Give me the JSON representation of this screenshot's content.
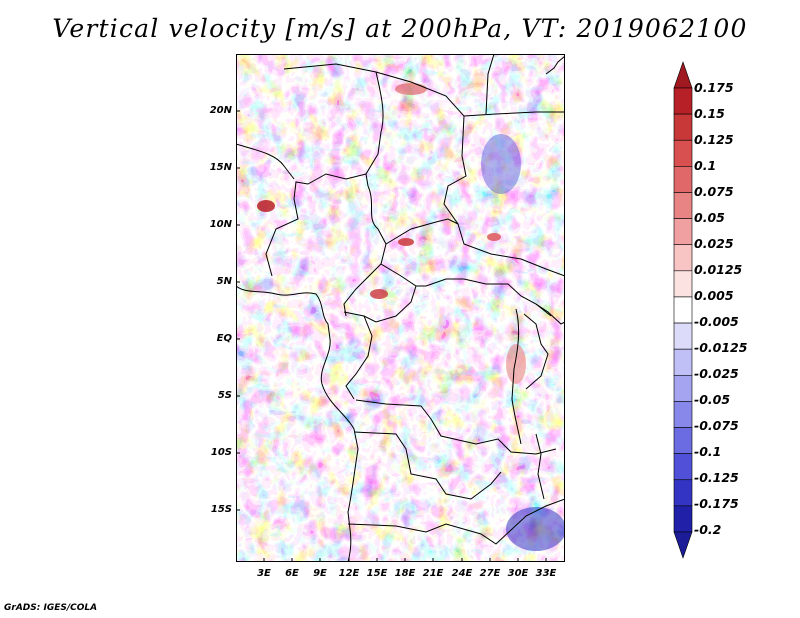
{
  "title": "Vertical velocity [m/s] at 200hPa, VT: 2019062100",
  "credit": "GrADS: IGES/COLA",
  "map": {
    "lon_range": [
      0,
      35
    ],
    "lat_range": [
      -20,
      24.5
    ],
    "lat_ticks": [
      {
        "lat": 20,
        "label": "20N"
      },
      {
        "lat": 15,
        "label": "15N"
      },
      {
        "lat": 10,
        "label": "10N"
      },
      {
        "lat": 5,
        "label": "5N"
      },
      {
        "lat": 0,
        "label": "EQ"
      },
      {
        "lat": -5,
        "label": "5S"
      },
      {
        "lat": -10,
        "label": "10S"
      },
      {
        "lat": -15,
        "label": "15S"
      }
    ],
    "lon_ticks": [
      {
        "lon": 3,
        "label": "3E"
      },
      {
        "lon": 6,
        "label": "6E"
      },
      {
        "lon": 9,
        "label": "9E"
      },
      {
        "lon": 12,
        "label": "12E"
      },
      {
        "lon": 15,
        "label": "15E"
      },
      {
        "lon": 18,
        "label": "18E"
      },
      {
        "lon": 21,
        "label": "21E"
      },
      {
        "lon": 24,
        "label": "24E"
      },
      {
        "lon": 27,
        "label": "27E"
      },
      {
        "lon": 30,
        "label": "30E"
      },
      {
        "lon": 33,
        "label": "33E"
      }
    ]
  },
  "colorbar": {
    "labels": [
      "0.175",
      "0.15",
      "0.125",
      "0.1",
      "0.075",
      "0.05",
      "0.025",
      "0.0125",
      "0.005",
      "-0.005",
      "-0.0125",
      "-0.025",
      "-0.05",
      "-0.075",
      "-0.1",
      "-0.125",
      "-0.175",
      "-0.2"
    ],
    "colors": [
      "#a01820",
      "#b82028",
      "#c83838",
      "#d85050",
      "#e06868",
      "#e88484",
      "#f0a0a0",
      "#f8c4c4",
      "#fde2e2",
      "#ffffff",
      "#dcdcfa",
      "#c0c0f6",
      "#a4a4f0",
      "#8888ea",
      "#6c6ce2",
      "#5050d8",
      "#3434c4",
      "#2020a8",
      "#1c1c98"
    ]
  }
}
